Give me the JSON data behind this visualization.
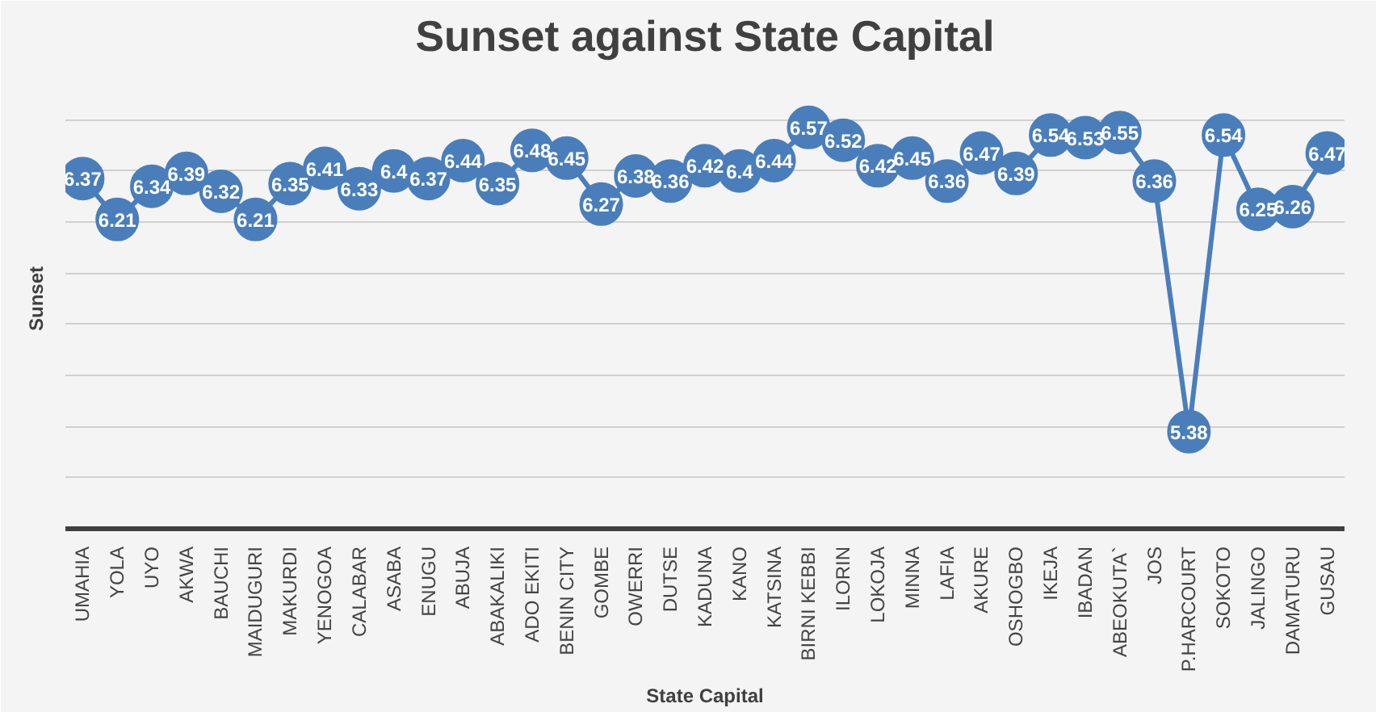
{
  "chart_data": {
    "type": "line",
    "title": "Sunset against State Capital",
    "xlabel": "State Capital",
    "ylabel": "Sunset",
    "categories": [
      "UMAHIA",
      "YOLA",
      "UYO",
      "AKWA",
      "BAUCHI",
      "MAIDUGURI",
      "MAKURDI",
      "YENOGOA",
      "CALABAR",
      "ASABA",
      "ENUGU",
      "ABUJA",
      "ABAKALIKI",
      "ADO EKITI",
      "BENIN CITY",
      "GOMBE",
      "OWERRI",
      "DUTSE",
      "KADUNA",
      "KANO",
      "KATSINA",
      "BIRNI KEBBI",
      "ILORIN",
      "LOKOJA",
      "MINNA",
      "LAFIA",
      "AKURE",
      "OSHOGBO",
      "IKEJA",
      "IBADAN",
      "ABEOKUTA`",
      "JOS",
      "P.HARCOURT",
      "SOKOTO",
      "JALINGO",
      "DAMATURU",
      "GUSAU"
    ],
    "series": [
      {
        "color": "#4a7ebb",
        "values": [
          6.37,
          6.21,
          6.34,
          6.39,
          6.32,
          6.21,
          6.35,
          6.41,
          6.33,
          6.4,
          6.37,
          6.44,
          6.35,
          6.48,
          6.45,
          6.27,
          6.38,
          6.36,
          6.42,
          6.4,
          6.44,
          6.57,
          6.52,
          6.42,
          6.45,
          6.36,
          6.47,
          6.39,
          6.54,
          6.53,
          6.55,
          6.36,
          5.38,
          6.54,
          6.25,
          6.26,
          6.47
        ]
      }
    ],
    "ylim": [
      5.0,
      6.8
    ],
    "yticks": [
      {
        "value": 5.0,
        "label": null
      },
      {
        "value": 5.2,
        "label": null
      },
      {
        "value": 5.4,
        "label": null
      },
      {
        "value": 5.6,
        "label": null
      },
      {
        "value": 5.8,
        "label": null
      },
      {
        "value": 6.0,
        "label": null
      },
      {
        "value": 6.2,
        "label": null
      },
      {
        "value": 6.4,
        "label": null
      },
      {
        "value": 6.6,
        "label": null
      },
      {
        "value": 6.8,
        "label": null
      }
    ],
    "tick_labels": "x",
    "grid": "y",
    "marker": "circle",
    "line_style": "solid",
    "data_labels": true
  }
}
